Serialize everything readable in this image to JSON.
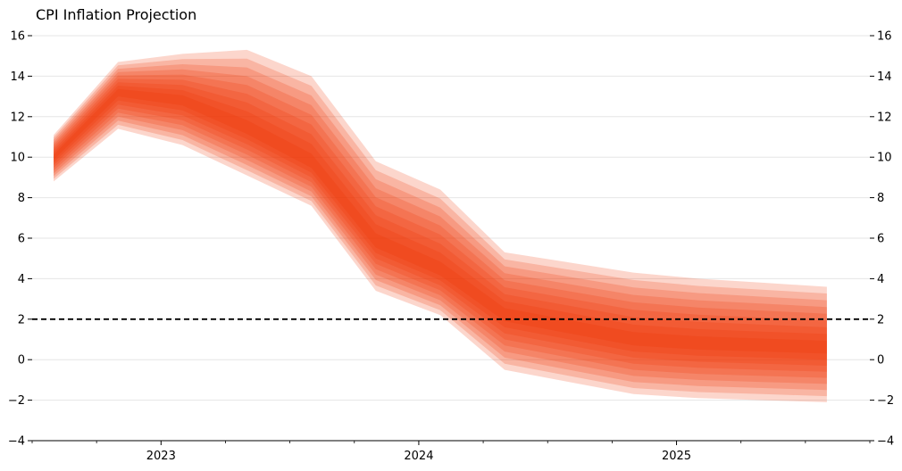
{
  "chart_data": {
    "type": "area",
    "title": "CPI Inflation Projection",
    "subtitle": "",
    "xlabel": "",
    "ylabel": "",
    "ylim": [
      -4,
      16
    ],
    "y_ticks": [
      -4,
      -2,
      0,
      2,
      4,
      6,
      8,
      10,
      12,
      14,
      16
    ],
    "y_tick_labels": [
      "−4",
      "−2",
      "0",
      "2",
      "4",
      "6",
      "8",
      "10",
      "12",
      "14",
      "16"
    ],
    "x_start": "2022-07",
    "x_end": "2025-10",
    "x": [
      "2022-Q3",
      "2022-Q4",
      "2023-Q1",
      "2023-Q2",
      "2023-Q3",
      "2023-Q4",
      "2024-Q1",
      "2024-Q2",
      "2024-Q3",
      "2024-Q4",
      "2025-Q1",
      "2025-Q2",
      "2025-Q3"
    ],
    "x_major_labels": [
      "2023",
      "2024",
      "2025"
    ],
    "grid": "horizontal",
    "legend": "none",
    "reference_line": {
      "y": 2,
      "style": "dashed",
      "color": "#000000"
    },
    "band_color": "#f03000",
    "median": [
      10.0,
      13.2,
      12.8,
      11.4,
      9.7,
      5.8,
      4.4,
      2.2,
      1.6,
      1.0,
      0.8,
      0.7,
      0.6
    ],
    "outer_upper": [
      11.1,
      14.7,
      15.1,
      15.3,
      14.0,
      9.8,
      8.4,
      5.3,
      4.8,
      4.3,
      4.0,
      3.8,
      3.6
    ],
    "outer_lower": [
      8.8,
      11.4,
      10.6,
      9.1,
      7.6,
      3.4,
      2.2,
      -0.5,
      -1.1,
      -1.7,
      -1.9,
      -2.0,
      -2.1
    ],
    "bands": 9
  }
}
